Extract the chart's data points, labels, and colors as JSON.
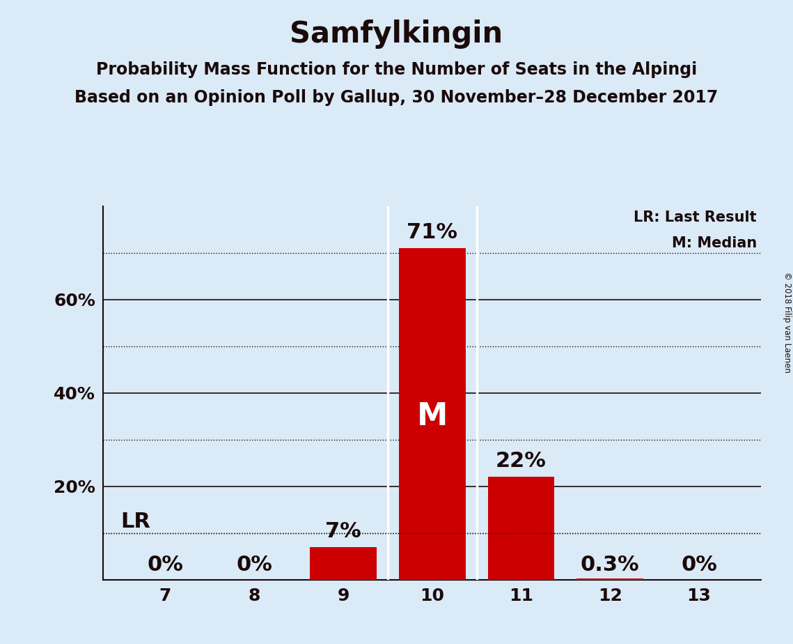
{
  "title": "Samfylkingin",
  "subtitle1": "Probability Mass Function for the Number of Seats in the Alpingi",
  "subtitle2": "Based on an Opinion Poll by Gallup, 30 November–28 December 2017",
  "copyright": "© 2018 Filip van Laenen",
  "categories": [
    7,
    8,
    9,
    10,
    11,
    12,
    13
  ],
  "values": [
    0.0,
    0.0,
    7.0,
    71.0,
    22.0,
    0.3,
    0.0
  ],
  "bar_color": "#cc0000",
  "background_color": "#daeaf6",
  "median_seat": 10,
  "median_label": "M",
  "lr_level": 10.0,
  "lr_label": "LR",
  "legend_lr": "LR: Last Result",
  "legend_m": "M: Median",
  "yticks": [
    20,
    40,
    60
  ],
  "ytick_labels": [
    "20%",
    "40%",
    "60%"
  ],
  "solid_lines": [
    20,
    40,
    60
  ],
  "dotted_lines": [
    10,
    30,
    50,
    70
  ],
  "ylim": [
    0,
    80
  ],
  "value_labels": [
    "0%",
    "0%",
    "7%",
    "71%",
    "22%",
    "0.3%",
    "0%"
  ],
  "bar_width": 0.75,
  "title_fontsize": 30,
  "subtitle_fontsize": 17,
  "tick_fontsize": 18,
  "annotation_fontsize": 22,
  "legend_fontsize": 15,
  "median_fontsize": 32
}
